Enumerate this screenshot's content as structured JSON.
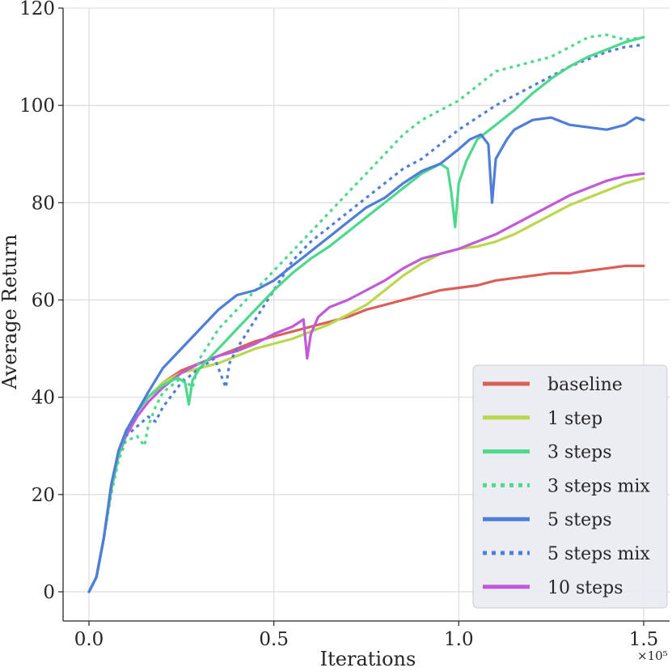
{
  "chart_data": {
    "type": "line",
    "xlabel": "Iterations",
    "ylabel": "Average Return",
    "x_multiplier_label": "×10⁵",
    "xlim": [
      -0.07,
      1.57
    ],
    "ylim": [
      -6,
      120
    ],
    "xticks": [
      {
        "value": 0.0,
        "label": "0.0"
      },
      {
        "value": 0.5,
        "label": "0.5"
      },
      {
        "value": 1.0,
        "label": "1.0"
      },
      {
        "value": 1.5,
        "label": "1.5"
      }
    ],
    "yticks": [
      {
        "value": 0,
        "label": "0"
      },
      {
        "value": 20,
        "label": "20"
      },
      {
        "value": 40,
        "label": "40"
      },
      {
        "value": 60,
        "label": "60"
      },
      {
        "value": 80,
        "label": "80"
      },
      {
        "value": 100,
        "label": "100"
      },
      {
        "value": 120,
        "label": "120"
      }
    ],
    "grid": true,
    "legend_position": "lower-right",
    "series": [
      {
        "name": "baseline",
        "color": "#db5f57",
        "style": "solid",
        "x": [
          0,
          0.02,
          0.04,
          0.06,
          0.08,
          0.1,
          0.13,
          0.16,
          0.2,
          0.25,
          0.3,
          0.35,
          0.4,
          0.45,
          0.5,
          0.55,
          0.6,
          0.65,
          0.7,
          0.75,
          0.8,
          0.85,
          0.9,
          0.95,
          1.0,
          1.05,
          1.1,
          1.15,
          1.2,
          1.25,
          1.3,
          1.35,
          1.4,
          1.45,
          1.5
        ],
        "y": [
          0,
          3,
          11,
          21,
          28,
          33,
          37,
          40,
          43,
          45.5,
          47,
          48.5,
          50,
          51.5,
          52.5,
          53.5,
          54.5,
          55.5,
          56.5,
          58,
          59,
          60,
          61,
          62,
          62.5,
          63,
          64,
          64.5,
          65,
          65.5,
          65.5,
          66,
          66.5,
          67,
          67
        ]
      },
      {
        "name": "1 step",
        "color": "#b9d850",
        "style": "solid",
        "x": [
          0,
          0.02,
          0.04,
          0.06,
          0.08,
          0.1,
          0.13,
          0.16,
          0.2,
          0.25,
          0.3,
          0.35,
          0.4,
          0.45,
          0.5,
          0.55,
          0.6,
          0.65,
          0.7,
          0.75,
          0.8,
          0.85,
          0.9,
          0.95,
          1.0,
          1.05,
          1.1,
          1.15,
          1.2,
          1.25,
          1.3,
          1.35,
          1.4,
          1.45,
          1.5
        ],
        "y": [
          0,
          3,
          11,
          21,
          28,
          33,
          37,
          40,
          43,
          45,
          46,
          47,
          48.5,
          50,
          51,
          52,
          53.5,
          55,
          57,
          59,
          62,
          65,
          67.5,
          69.5,
          70.5,
          71,
          72,
          73.5,
          75.5,
          77.5,
          79.5,
          81,
          82.5,
          84,
          85
        ]
      },
      {
        "name": "3 steps",
        "color": "#4ed88d",
        "style": "solid",
        "x": [
          0,
          0.02,
          0.04,
          0.06,
          0.08,
          0.1,
          0.13,
          0.16,
          0.2,
          0.24,
          0.26,
          0.27,
          0.28,
          0.3,
          0.35,
          0.4,
          0.45,
          0.5,
          0.55,
          0.6,
          0.65,
          0.7,
          0.75,
          0.8,
          0.85,
          0.9,
          0.95,
          0.97,
          0.98,
          0.99,
          1.0,
          1.02,
          1.05,
          1.1,
          1.15,
          1.2,
          1.25,
          1.3,
          1.35,
          1.4,
          1.45,
          1.5
        ],
        "y": [
          0,
          3,
          11,
          21,
          28,
          33,
          37,
          40,
          42.5,
          44,
          43,
          38.5,
          43.5,
          46,
          50,
          54,
          58,
          62,
          65.5,
          68.5,
          71,
          74,
          77,
          80,
          83,
          86,
          88,
          87,
          82,
          75,
          84,
          88.5,
          93,
          96,
          99,
          102.5,
          105.5,
          108,
          110,
          111.5,
          113,
          114
        ]
      },
      {
        "name": "3 steps mix",
        "color": "#4ed88d",
        "style": "dotted",
        "x": [
          0,
          0.02,
          0.04,
          0.06,
          0.08,
          0.1,
          0.13,
          0.15,
          0.16,
          0.18,
          0.2,
          0.25,
          0.28,
          0.3,
          0.35,
          0.4,
          0.45,
          0.5,
          0.55,
          0.6,
          0.65,
          0.7,
          0.75,
          0.8,
          0.85,
          0.9,
          0.95,
          1.0,
          1.05,
          1.1,
          1.15,
          1.2,
          1.25,
          1.3,
          1.35,
          1.4,
          1.45,
          1.5
        ],
        "y": [
          0,
          3,
          11,
          20,
          27,
          31,
          32,
          30,
          34,
          38,
          41,
          44,
          42,
          48,
          54,
          58,
          62,
          66,
          70,
          74,
          78,
          82,
          86,
          90,
          94,
          97,
          99,
          101,
          104,
          107,
          108,
          109,
          110,
          112,
          114,
          114.5,
          113.5,
          114
        ]
      },
      {
        "name": "5 steps",
        "color": "#4f7ed8",
        "style": "solid",
        "x": [
          0,
          0.02,
          0.04,
          0.06,
          0.08,
          0.1,
          0.13,
          0.16,
          0.2,
          0.25,
          0.3,
          0.35,
          0.4,
          0.45,
          0.5,
          0.55,
          0.6,
          0.65,
          0.7,
          0.75,
          0.8,
          0.85,
          0.9,
          0.95,
          1.0,
          1.03,
          1.06,
          1.08,
          1.09,
          1.1,
          1.13,
          1.15,
          1.2,
          1.25,
          1.3,
          1.35,
          1.4,
          1.45,
          1.48,
          1.5
        ],
        "y": [
          0,
          3,
          11,
          22,
          29,
          33,
          37,
          41,
          46,
          50,
          54,
          58,
          61,
          62,
          64,
          67,
          70,
          73,
          76,
          79,
          81,
          84,
          86.5,
          88,
          91,
          93,
          94,
          92,
          80,
          89,
          93,
          95,
          97,
          97.5,
          96,
          95.5,
          95,
          96,
          97.5,
          97
        ]
      },
      {
        "name": "5 steps mix",
        "color": "#4f7ed8",
        "style": "dotted",
        "x": [
          0,
          0.02,
          0.04,
          0.06,
          0.08,
          0.1,
          0.13,
          0.16,
          0.18,
          0.2,
          0.25,
          0.3,
          0.34,
          0.36,
          0.37,
          0.38,
          0.4,
          0.45,
          0.5,
          0.55,
          0.6,
          0.65,
          0.7,
          0.75,
          0.8,
          0.85,
          0.9,
          0.95,
          1.0,
          1.05,
          1.1,
          1.15,
          1.2,
          1.25,
          1.3,
          1.35,
          1.4,
          1.45,
          1.5
        ],
        "y": [
          0,
          3,
          11,
          21,
          28,
          32,
          34,
          36,
          35,
          38,
          43,
          46,
          48,
          44,
          42,
          47,
          50,
          56,
          62,
          68,
          72,
          75,
          78,
          81,
          84,
          87,
          89,
          92,
          95,
          97.5,
          100,
          102,
          104,
          106,
          108,
          109.5,
          111,
          112,
          112.5
        ]
      },
      {
        "name": "10 steps",
        "color": "#c05ad8",
        "style": "solid",
        "x": [
          0,
          0.02,
          0.04,
          0.06,
          0.08,
          0.1,
          0.13,
          0.16,
          0.2,
          0.25,
          0.3,
          0.35,
          0.4,
          0.45,
          0.5,
          0.55,
          0.58,
          0.59,
          0.6,
          0.62,
          0.65,
          0.7,
          0.75,
          0.8,
          0.85,
          0.9,
          0.95,
          1.0,
          1.05,
          1.1,
          1.15,
          1.2,
          1.25,
          1.3,
          1.35,
          1.4,
          1.45,
          1.5
        ],
        "y": [
          0,
          3,
          11,
          21,
          28,
          32,
          36,
          39,
          42,
          45,
          47,
          48.5,
          49.5,
          51,
          53,
          54.5,
          56,
          48,
          53,
          56.5,
          58.5,
          60,
          62,
          64,
          66.5,
          68.5,
          69.5,
          70.5,
          72,
          73.5,
          75.5,
          77.5,
          79.5,
          81.5,
          83,
          84.5,
          85.5,
          86
        ]
      }
    ]
  }
}
